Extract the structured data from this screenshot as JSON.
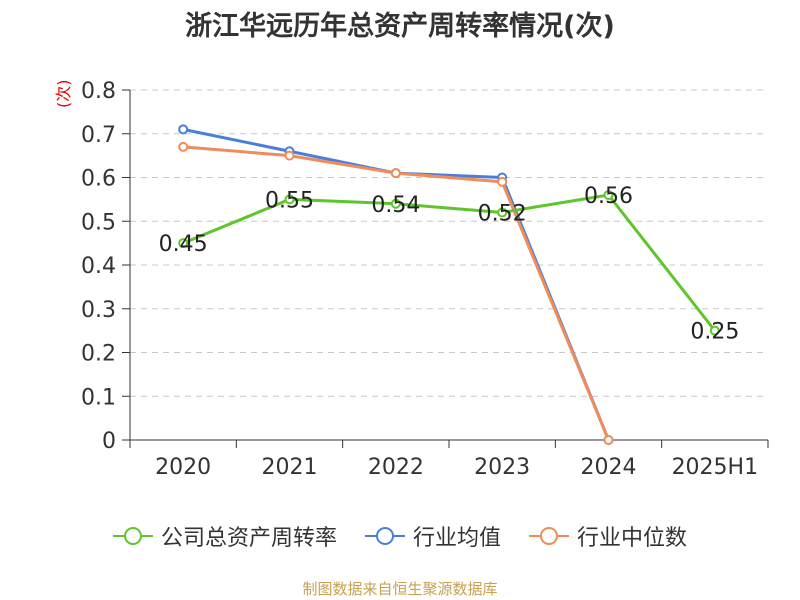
{
  "chart_data": {
    "type": "line",
    "title": "浙江华远历年总资产周转率情况(次)",
    "ylabel": "(次)",
    "xlabel": "",
    "categories": [
      "2020",
      "2021",
      "2022",
      "2023",
      "2024",
      "2025H1"
    ],
    "ylim": [
      0,
      0.8
    ],
    "yticks": [
      "0",
      "0.1",
      "0.2",
      "0.3",
      "0.4",
      "0.5",
      "0.6",
      "0.7",
      "0.8"
    ],
    "grid": true,
    "legend_position": "bottom",
    "series": [
      {
        "name": "公司总资产周转率",
        "color": "#5ec52a",
        "values": [
          0.45,
          0.55,
          0.54,
          0.52,
          0.56,
          0.25
        ],
        "labels": [
          "0.45",
          "0.55",
          "0.54",
          "0.52",
          "0.56",
          "0.25"
        ]
      },
      {
        "name": "行业均值",
        "color": "#4a7fd8",
        "values": [
          0.71,
          0.66,
          0.61,
          0.6,
          0.0,
          null
        ]
      },
      {
        "name": "行业中位数",
        "color": "#f08c5a",
        "values": [
          0.67,
          0.65,
          0.61,
          0.59,
          0.0,
          null
        ]
      }
    ]
  },
  "source": "制图数据来自恒生聚源数据库"
}
